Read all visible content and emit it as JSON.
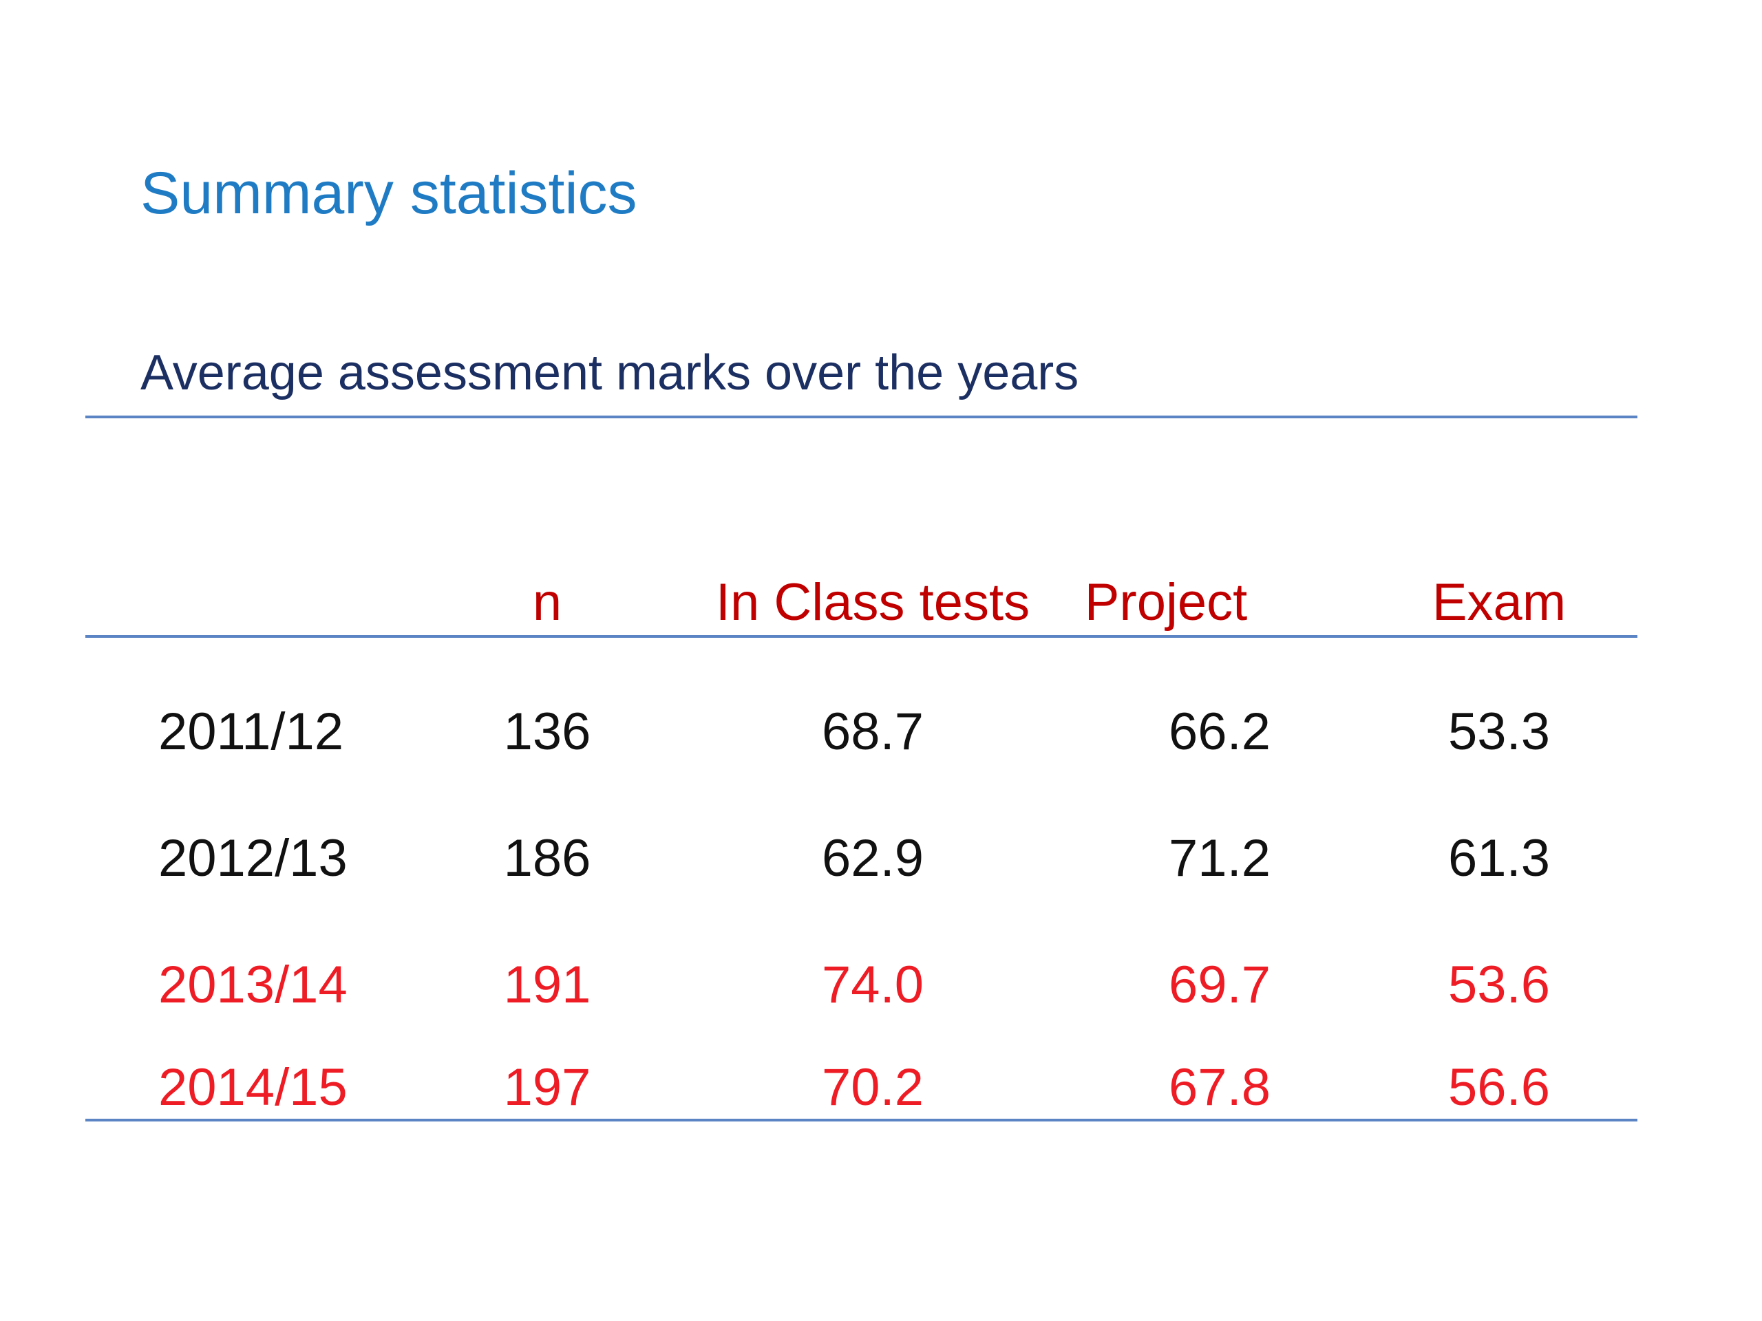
{
  "slide": {
    "title": "Summary statistics",
    "subtitle": "Average assessment marks over the years"
  },
  "table": {
    "headers": [
      "",
      "n",
      "In Class tests",
      "Project",
      "Exam"
    ],
    "rows": [
      {
        "year": "2011/12",
        "n": "136",
        "in_class_tests": "68.7",
        "project": "66.2",
        "exam": "53.3",
        "highlight": false
      },
      {
        "year": "2012/13",
        "n": "186",
        "in_class_tests": "62.9",
        "project": "71.2",
        "exam": "61.3",
        "highlight": false
      },
      {
        "year": "2013/14",
        "n": "191",
        "in_class_tests": "74.0",
        "project": "69.7",
        "exam": "53.6",
        "highlight": true
      },
      {
        "year": "2014/15",
        "n": "197",
        "in_class_tests": "70.2",
        "project": "67.8",
        "exam": "56.6",
        "highlight": true
      }
    ]
  },
  "colors": {
    "title": "#1f7cc4",
    "subtitle": "#1c2f63",
    "header": "#c00000",
    "highlight_row": "#ee1c24",
    "normal_row": "#111111",
    "rule": "#5b84c4"
  }
}
